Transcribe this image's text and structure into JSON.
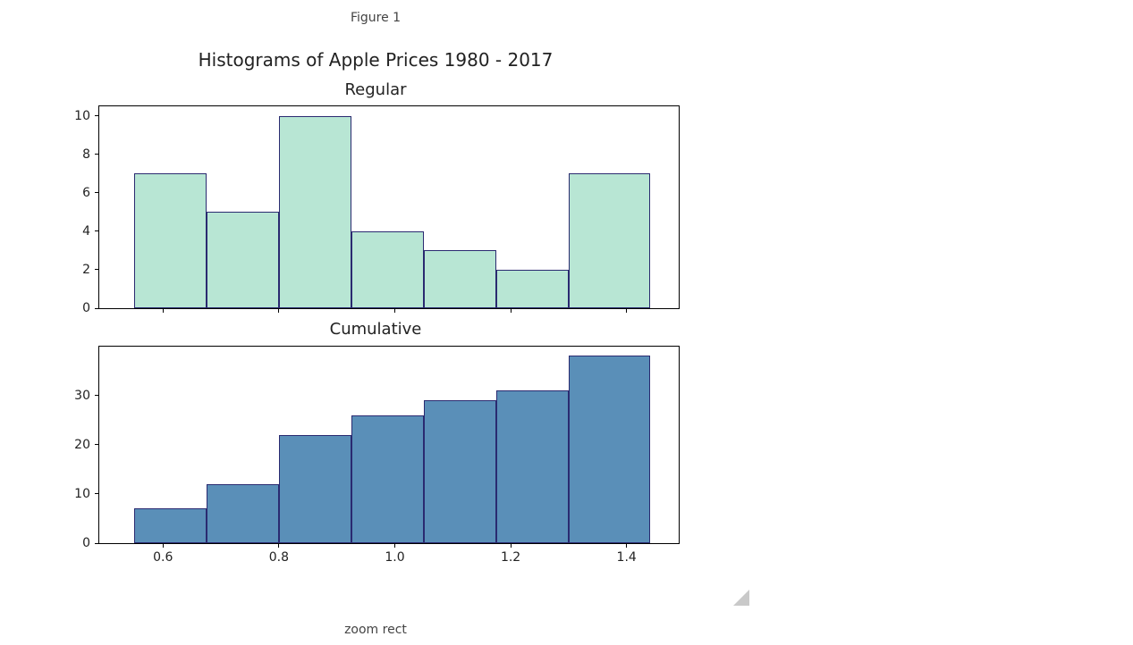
{
  "window": {
    "title": "Figure 1",
    "status_text": "zoom rect"
  },
  "figure": {
    "suptitle": "Histograms of Apple Prices 1980 - 2017",
    "background_color": "#ffffff",
    "title_fontsize": 20,
    "subplot_title_fontsize": 18,
    "tick_fontsize": 14,
    "border_color": "#000000"
  },
  "xaxis": {
    "min": 0.49,
    "max": 1.49,
    "ticks": [
      0.6,
      0.8,
      1.0,
      1.2,
      1.4
    ],
    "tick_labels": [
      "0.6",
      "0.8",
      "1.0",
      "1.2",
      "1.4"
    ]
  },
  "bins": {
    "edges": [
      0.55,
      0.675,
      0.8,
      0.925,
      1.05,
      1.175,
      1.3,
      1.44
    ],
    "count": 7
  },
  "subplot1": {
    "title": "Regular",
    "type": "histogram",
    "values": [
      7,
      5,
      10,
      4,
      3,
      2,
      7
    ],
    "ymin": 0,
    "ymax": 10.5,
    "yticks": [
      0,
      2,
      4,
      6,
      8,
      10
    ],
    "bar_fill": "#b8e6d4",
    "bar_edge": "#2a2a70",
    "bar_edge_width": 1.2
  },
  "subplot2": {
    "title": "Cumulative",
    "type": "histogram-cumulative",
    "values": [
      7,
      12,
      22,
      26,
      29,
      31,
      38
    ],
    "ymin": 0,
    "ymax": 39.9,
    "yticks": [
      0,
      10,
      20,
      30
    ],
    "bar_fill": "#5a8fb8",
    "bar_edge": "#2a2a70",
    "bar_edge_width": 1.2
  }
}
